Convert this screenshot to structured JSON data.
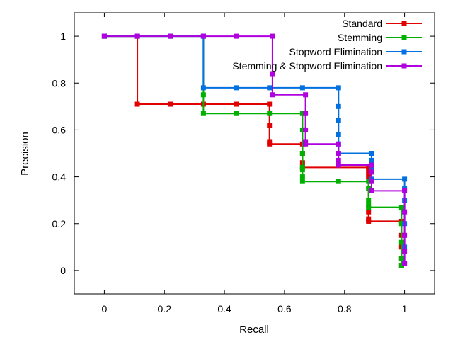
{
  "chart_data": {
    "type": "line",
    "title": "",
    "xlabel": "Recall",
    "ylabel": "Precision",
    "xlim": [
      -0.1,
      1.1
    ],
    "ylim": [
      -0.1,
      1.1
    ],
    "x_ticks": [
      "0",
      "0.2",
      "0.4",
      "0.6",
      "0.8",
      "1"
    ],
    "x_tick_values": [
      0,
      0.2,
      0.4,
      0.6,
      0.8,
      1
    ],
    "y_ticks": [
      "0",
      "0.2",
      "0.4",
      "0.6",
      "0.8",
      "1"
    ],
    "y_tick_values": [
      0,
      0.2,
      0.4,
      0.6,
      0.8,
      1
    ],
    "grid": false,
    "legend_position": "top-right",
    "series": [
      {
        "name": "Standard",
        "color": "#e00000",
        "points": [
          [
            0,
            1
          ],
          [
            0.11,
            1
          ],
          [
            0.11,
            0.71
          ],
          [
            0.22,
            0.71
          ],
          [
            0.33,
            0.71
          ],
          [
            0.44,
            0.71
          ],
          [
            0.55,
            0.71
          ],
          [
            0.55,
            0.62
          ],
          [
            0.55,
            0.55
          ],
          [
            0.55,
            0.54
          ],
          [
            0.66,
            0.54
          ],
          [
            0.66,
            0.5
          ],
          [
            0.66,
            0.46
          ],
          [
            0.66,
            0.44
          ],
          [
            0.88,
            0.44
          ],
          [
            0.88,
            0.42
          ],
          [
            0.88,
            0.4
          ],
          [
            0.88,
            0.25
          ],
          [
            0.88,
            0.22
          ],
          [
            0.88,
            0.21
          ],
          [
            0.99,
            0.21
          ],
          [
            0.99,
            0.15
          ],
          [
            0.99,
            0.1
          ],
          [
            0.99,
            0.05
          ],
          [
            0.99,
            0.02
          ]
        ]
      },
      {
        "name": "Stemming",
        "color": "#00b000",
        "points": [
          [
            0,
            1
          ],
          [
            0.11,
            1
          ],
          [
            0.22,
            1
          ],
          [
            0.33,
            1
          ],
          [
            0.33,
            0.75
          ],
          [
            0.33,
            0.67
          ],
          [
            0.44,
            0.67
          ],
          [
            0.55,
            0.67
          ],
          [
            0.66,
            0.67
          ],
          [
            0.66,
            0.6
          ],
          [
            0.66,
            0.5
          ],
          [
            0.66,
            0.44
          ],
          [
            0.66,
            0.43
          ],
          [
            0.66,
            0.4
          ],
          [
            0.66,
            0.38
          ],
          [
            0.78,
            0.38
          ],
          [
            0.88,
            0.38
          ],
          [
            0.88,
            0.35
          ],
          [
            0.88,
            0.3
          ],
          [
            0.88,
            0.28
          ],
          [
            0.88,
            0.27
          ],
          [
            0.99,
            0.27
          ],
          [
            0.99,
            0.2
          ],
          [
            0.99,
            0.12
          ],
          [
            0.99,
            0.05
          ],
          [
            0.99,
            0.02
          ]
        ]
      },
      {
        "name": "Stopword Elimination",
        "color": "#0070e0",
        "points": [
          [
            0,
            1
          ],
          [
            0.11,
            1
          ],
          [
            0.22,
            1
          ],
          [
            0.33,
            1
          ],
          [
            0.33,
            0.78
          ],
          [
            0.44,
            0.78
          ],
          [
            0.55,
            0.78
          ],
          [
            0.66,
            0.78
          ],
          [
            0.78,
            0.78
          ],
          [
            0.78,
            0.7
          ],
          [
            0.78,
            0.64
          ],
          [
            0.78,
            0.58
          ],
          [
            0.78,
            0.54
          ],
          [
            0.78,
            0.5
          ],
          [
            0.89,
            0.5
          ],
          [
            0.89,
            0.47
          ],
          [
            0.89,
            0.44
          ],
          [
            0.89,
            0.39
          ],
          [
            1.0,
            0.39
          ],
          [
            1.0,
            0.35
          ],
          [
            1.0,
            0.3
          ],
          [
            1.0,
            0.2
          ],
          [
            1.0,
            0.1
          ],
          [
            1.0,
            0.03
          ]
        ]
      },
      {
        "name": "Stemming & Stopword Elimination",
        "color": "#b000e0",
        "points": [
          [
            0,
            1
          ],
          [
            0.11,
            1
          ],
          [
            0.22,
            1
          ],
          [
            0.33,
            1
          ],
          [
            0.44,
            1
          ],
          [
            0.56,
            1
          ],
          [
            0.56,
            0.84
          ],
          [
            0.56,
            0.75
          ],
          [
            0.67,
            0.75
          ],
          [
            0.67,
            0.67
          ],
          [
            0.67,
            0.6
          ],
          [
            0.67,
            0.55
          ],
          [
            0.67,
            0.54
          ],
          [
            0.78,
            0.54
          ],
          [
            0.78,
            0.5
          ],
          [
            0.78,
            0.47
          ],
          [
            0.78,
            0.45
          ],
          [
            0.89,
            0.45
          ],
          [
            0.89,
            0.42
          ],
          [
            0.89,
            0.38
          ],
          [
            0.89,
            0.34
          ],
          [
            1.0,
            0.34
          ],
          [
            1.0,
            0.25
          ],
          [
            1.0,
            0.15
          ],
          [
            1.0,
            0.08
          ],
          [
            1.0,
            0.03
          ]
        ]
      }
    ]
  }
}
